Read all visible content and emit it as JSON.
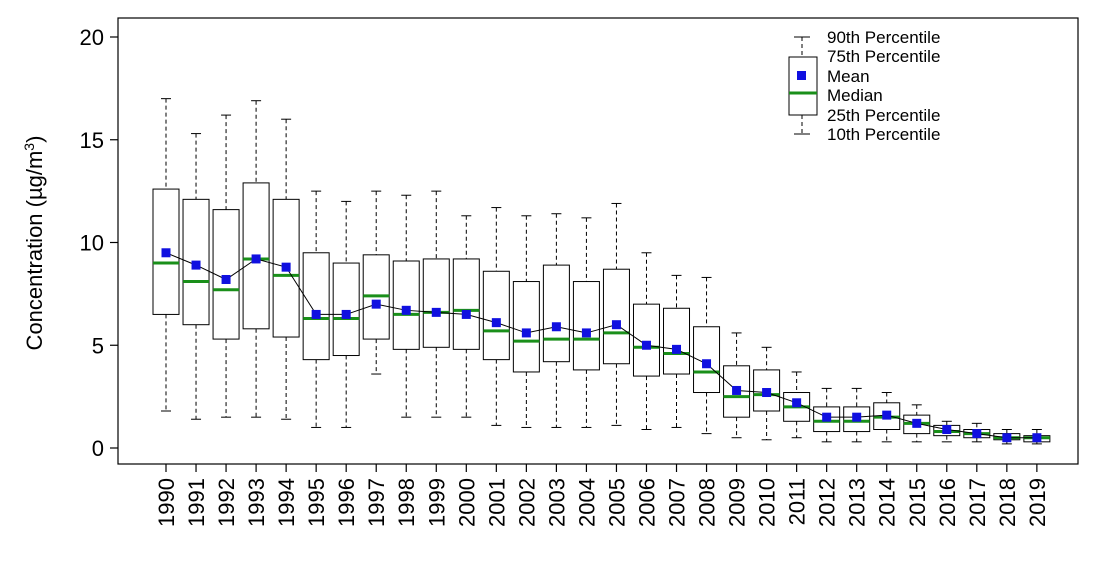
{
  "chart_data": {
    "type": "boxplot",
    "title": "",
    "xlabel": "",
    "ylabel": {
      "text": "Concentration (µg/m",
      "superscript": "3",
      "suffix": ")"
    },
    "ylim": [
      0,
      20
    ],
    "yticks": [
      "0",
      "5",
      "10",
      "15",
      "20"
    ],
    "categories": [
      "1990",
      "1991",
      "1992",
      "1993",
      "1994",
      "1995",
      "1996",
      "1997",
      "1998",
      "1999",
      "2000",
      "2001",
      "2002",
      "2003",
      "2004",
      "2005",
      "2006",
      "2007",
      "2008",
      "2009",
      "2010",
      "2011",
      "2012",
      "2013",
      "2014",
      "2015",
      "2016",
      "2017",
      "2018",
      "2019"
    ],
    "p10": [
      1.8,
      1.4,
      1.5,
      1.5,
      1.4,
      1.0,
      1.0,
      3.6,
      1.5,
      1.5,
      1.5,
      1.1,
      1.0,
      1.0,
      1.0,
      1.1,
      0.9,
      1.0,
      0.7,
      0.5,
      0.4,
      0.5,
      0.3,
      0.3,
      0.3,
      0.3,
      0.3,
      0.3,
      0.2,
      0.2
    ],
    "p25": [
      6.5,
      6.0,
      5.3,
      5.8,
      5.4,
      4.3,
      4.5,
      5.3,
      4.8,
      4.9,
      4.8,
      4.3,
      3.7,
      4.2,
      3.8,
      4.1,
      3.5,
      3.6,
      2.7,
      1.5,
      1.8,
      1.3,
      0.8,
      0.8,
      0.9,
      0.7,
      0.6,
      0.5,
      0.4,
      0.3
    ],
    "median": [
      9.0,
      8.1,
      7.7,
      9.2,
      8.4,
      6.3,
      6.3,
      7.4,
      6.5,
      6.6,
      6.7,
      5.7,
      5.2,
      5.3,
      5.3,
      5.6,
      4.9,
      4.6,
      3.7,
      2.5,
      2.6,
      2.0,
      1.3,
      1.3,
      1.5,
      1.2,
      0.8,
      0.7,
      0.5,
      0.5
    ],
    "mean": [
      9.5,
      8.9,
      8.2,
      9.2,
      8.8,
      6.5,
      6.5,
      7.0,
      6.7,
      6.6,
      6.5,
      6.1,
      5.6,
      5.9,
      5.6,
      6.0,
      5.0,
      4.8,
      4.1,
      2.8,
      2.7,
      2.2,
      1.5,
      1.5,
      1.6,
      1.2,
      0.9,
      0.7,
      0.5,
      0.5
    ],
    "p75": [
      12.6,
      12.1,
      11.6,
      12.9,
      12.1,
      9.5,
      9.0,
      9.4,
      9.1,
      9.2,
      9.2,
      8.6,
      8.1,
      8.9,
      8.1,
      8.7,
      7.0,
      6.8,
      5.9,
      4.0,
      3.8,
      2.7,
      2.0,
      2.0,
      2.2,
      1.6,
      1.1,
      0.9,
      0.7,
      0.6
    ],
    "p90": [
      17.0,
      15.3,
      16.2,
      16.9,
      16.0,
      12.5,
      12.0,
      12.5,
      12.3,
      12.5,
      11.3,
      11.7,
      11.3,
      11.4,
      11.2,
      11.9,
      9.5,
      8.4,
      8.3,
      5.6,
      4.9,
      3.7,
      2.9,
      2.9,
      2.7,
      2.1,
      1.3,
      1.2,
      0.9,
      0.9
    ],
    "legend": {
      "position": "top-right",
      "entries": [
        "90th Percentile",
        "75th Percentile",
        "Mean",
        "Median",
        "25th Percentile",
        "10th Percentile"
      ]
    },
    "colors": {
      "median": "#1a8f1a",
      "mean": "#1010e0",
      "box": "#000000",
      "whisker": "#000000",
      "mean_line": "#000000"
    }
  }
}
